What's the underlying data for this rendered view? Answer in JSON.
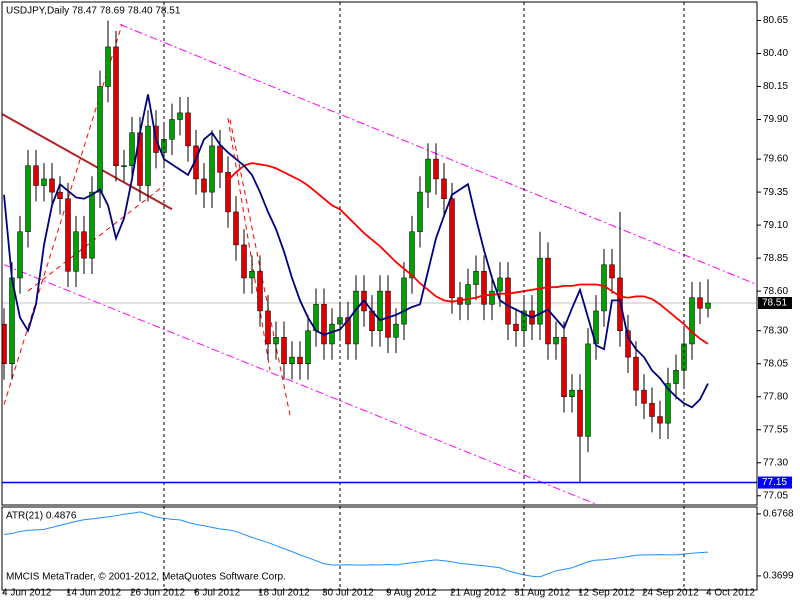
{
  "chart_data": [
    {
      "type": "candlestick",
      "title": "USDJPY,Daily  78.47 78.69 78.40 78.51",
      "categories": [
        "4 Jun 2012",
        null,
        null,
        null,
        null,
        null,
        null,
        null,
        "14 Jun 2012",
        null,
        null,
        null,
        null,
        null,
        null,
        null,
        "26 Jun 2012",
        null,
        null,
        null,
        null,
        null,
        null,
        null,
        "6 Jul 2012",
        null,
        null,
        null,
        null,
        null,
        null,
        null,
        "18 Jul 2012",
        null,
        null,
        null,
        null,
        null,
        null,
        null,
        "30 Jul 2012",
        null,
        null,
        null,
        null,
        null,
        null,
        null,
        "9 Aug 2012",
        null,
        null,
        null,
        null,
        null,
        null,
        null,
        "21 Aug 2012",
        null,
        null,
        null,
        null,
        null,
        null,
        null,
        "31 Aug 2012",
        null,
        null,
        null,
        null,
        null,
        null,
        null,
        "12 Sep 2012",
        null,
        null,
        null,
        null,
        null,
        null,
        null,
        "24 Sep 2012",
        null,
        null,
        null,
        null,
        null,
        null,
        null,
        "4 Oct 2012"
      ],
      "open": [
        78.35,
        78.05,
        78.7,
        79.05,
        79.55,
        79.4,
        79.45,
        79.35,
        79.3,
        78.75,
        79.05,
        78.85,
        79.35,
        80.15,
        80.45,
        79.55,
        79.55,
        79.8,
        79.4,
        79.85,
        79.65,
        79.75,
        79.9,
        79.95,
        79.7,
        79.45,
        79.35,
        79.7,
        79.5,
        79.2,
        78.95,
        78.7,
        78.75,
        78.45,
        78.2,
        78.25,
        78.05,
        78.1,
        78.05,
        78.3,
        78.5,
        78.2,
        78.35,
        78.4,
        78.2,
        78.6,
        78.45,
        78.3,
        78.6,
        78.25,
        78.35,
        78.7,
        79.05,
        79.35,
        79.6,
        79.45,
        79.3,
        78.55,
        78.5,
        78.65,
        78.75,
        78.5,
        78.6,
        78.7,
        78.35,
        78.3,
        78.45,
        78.35,
        78.85,
        78.2,
        78.25,
        77.8,
        77.85,
        77.5,
        78.2,
        78.45,
        78.8,
        78.7,
        78.3,
        78.1,
        77.85,
        77.75,
        77.65,
        77.6,
        77.9,
        78.0,
        78.2,
        78.55,
        78.47
      ],
      "high": [
        78.47,
        78.82,
        79.17,
        79.67,
        79.67,
        79.57,
        79.57,
        79.47,
        79.42,
        79.17,
        79.17,
        79.47,
        80.27,
        80.65,
        80.57,
        79.67,
        79.92,
        79.92,
        79.97,
        79.97,
        79.87,
        80.02,
        80.07,
        80.07,
        79.82,
        79.57,
        79.82,
        79.82,
        79.62,
        79.32,
        79.07,
        78.87,
        78.87,
        78.57,
        78.37,
        78.37,
        78.22,
        78.22,
        78.42,
        78.62,
        78.62,
        78.47,
        78.52,
        78.52,
        78.72,
        78.72,
        78.57,
        78.72,
        78.72,
        78.47,
        78.82,
        79.17,
        79.47,
        79.72,
        79.72,
        79.57,
        79.42,
        78.67,
        78.77,
        78.87,
        78.87,
        78.72,
        78.82,
        78.82,
        78.47,
        78.57,
        78.57,
        79.05,
        78.97,
        78.37,
        78.37,
        77.97,
        77.97,
        78.32,
        78.57,
        78.92,
        78.92,
        79.2,
        78.42,
        78.22,
        77.97,
        77.87,
        77.77,
        78.02,
        78.12,
        78.32,
        78.67,
        78.67,
        78.69
      ],
      "low": [
        77.93,
        77.93,
        78.58,
        78.93,
        79.28,
        79.28,
        79.23,
        79.18,
        78.63,
        78.63,
        78.73,
        78.73,
        79.23,
        80.03,
        79.43,
        79.43,
        79.43,
        79.28,
        79.28,
        79.53,
        79.53,
        79.63,
        79.78,
        79.58,
        79.33,
        79.23,
        79.23,
        79.38,
        79.08,
        78.83,
        78.58,
        78.58,
        78.33,
        78.08,
        78.08,
        77.93,
        77.93,
        77.93,
        77.93,
        78.18,
        78.08,
        78.08,
        78.23,
        78.08,
        78.08,
        78.33,
        78.18,
        78.18,
        78.13,
        78.13,
        78.23,
        78.58,
        78.93,
        79.23,
        79.33,
        79.18,
        78.43,
        78.38,
        78.38,
        78.53,
        78.38,
        78.38,
        78.48,
        78.23,
        78.18,
        78.18,
        78.23,
        78.23,
        78.08,
        78.08,
        77.68,
        77.68,
        77.15,
        77.38,
        78.08,
        78.33,
        78.58,
        78.18,
        77.98,
        77.73,
        77.63,
        77.53,
        77.48,
        77.48,
        77.78,
        77.88,
        78.08,
        78.35,
        78.4
      ],
      "close": [
        78.05,
        78.7,
        79.05,
        79.55,
        79.4,
        79.45,
        79.35,
        79.3,
        78.75,
        79.05,
        78.85,
        79.35,
        80.15,
        80.45,
        79.55,
        79.55,
        79.8,
        79.4,
        79.85,
        79.65,
        79.75,
        79.9,
        79.95,
        79.7,
        79.45,
        79.35,
        79.7,
        79.5,
        79.2,
        78.95,
        78.7,
        78.75,
        78.45,
        78.2,
        78.25,
        78.05,
        78.1,
        78.05,
        78.3,
        78.5,
        78.2,
        78.35,
        78.4,
        78.2,
        78.6,
        78.45,
        78.3,
        78.6,
        78.25,
        78.35,
        78.7,
        79.05,
        79.35,
        79.6,
        79.45,
        79.3,
        78.55,
        78.5,
        78.65,
        78.75,
        78.5,
        78.6,
        78.7,
        78.35,
        78.3,
        78.45,
        78.35,
        78.85,
        78.2,
        78.25,
        77.8,
        77.85,
        77.5,
        78.2,
        78.45,
        78.8,
        78.7,
        78.3,
        78.1,
        77.85,
        77.75,
        77.65,
        77.6,
        77.9,
        78.0,
        78.2,
        78.55,
        78.47,
        78.51
      ],
      "up_color": "#00a000",
      "down_color": "#e00000",
      "wick_color": "#000000",
      "overlays": [
        {
          "color": "#ff0000",
          "values": [
            null,
            null,
            null,
            null,
            null,
            null,
            null,
            null,
            null,
            null,
            null,
            null,
            null,
            null,
            null,
            null,
            null,
            null,
            null,
            null,
            null,
            null,
            null,
            null,
            null,
            null,
            null,
            null,
            79.44,
            79.5,
            79.55,
            79.57,
            79.56,
            79.55,
            79.53,
            79.5,
            79.47,
            79.44,
            79.4,
            79.35,
            79.3,
            79.25,
            79.22,
            79.16,
            79.1,
            79.04,
            78.99,
            78.94,
            78.88,
            78.82,
            78.77,
            78.72,
            78.66,
            78.61,
            78.56,
            78.53,
            78.52,
            78.53,
            78.54,
            78.55,
            78.57,
            78.57,
            78.58,
            78.58,
            78.59,
            78.6,
            78.61,
            78.62,
            78.63,
            78.63,
            78.64,
            78.64,
            78.65,
            78.65,
            78.65,
            78.64,
            78.6,
            78.56,
            78.55,
            78.56,
            78.56,
            78.54,
            78.5,
            78.45,
            78.4,
            78.35,
            78.29,
            78.24,
            78.2
          ]
        },
        {
          "color": "#000080",
          "values": [
            79.33,
            78.69,
            78.4,
            78.3,
            78.5,
            78.95,
            79.25,
            79.41,
            79.36,
            79.31,
            79.3,
            79.33,
            79.37,
            79.25,
            79.0,
            79.15,
            79.45,
            79.8,
            80.09,
            79.75,
            79.6,
            79.56,
            79.52,
            79.48,
            79.6,
            79.75,
            79.8,
            79.71,
            79.65,
            79.6,
            79.55,
            79.48,
            79.35,
            79.2,
            79.07,
            78.9,
            78.7,
            78.53,
            78.4,
            78.3,
            78.27,
            78.29,
            78.31,
            78.38,
            78.46,
            78.53,
            78.45,
            78.38,
            78.4,
            78.42,
            78.45,
            78.48,
            78.5,
            78.75,
            79.0,
            79.17,
            79.33,
            79.37,
            79.41,
            79.15,
            78.91,
            78.7,
            78.53,
            78.49,
            78.46,
            78.43,
            78.4,
            78.43,
            78.46,
            78.39,
            78.32,
            78.47,
            78.61,
            78.4,
            78.19,
            78.16,
            78.53,
            78.53,
            78.25,
            78.16,
            78.1,
            78.0,
            77.94,
            77.86,
            77.8,
            77.75,
            77.72,
            77.78,
            77.9
          ]
        }
      ],
      "trendlines": [
        {
          "from": [
            14.5,
            80.62
          ],
          "to": [
            94.1,
            78.65
          ],
          "color": "#ff00ff",
          "style": "dashdot"
        },
        {
          "from": [
            0,
            78.8
          ],
          "to": [
            74.25,
            76.98
          ],
          "color": "#ff00ff",
          "style": "dashdot"
        },
        {
          "from": [
            0,
            77.74
          ],
          "to": [
            14.75,
            80.62
          ],
          "color": "#ff0000",
          "style": "dash"
        },
        {
          "from": [
            28.25,
            79.9
          ],
          "to": [
            35.75,
            77.66
          ],
          "color": "#ff0000",
          "style": "dash"
        },
        {
          "from": [
            28,
            79.91
          ],
          "to": [
            33.25,
            78.0
          ],
          "color": "#ff0000",
          "style": "dash"
        },
        {
          "from": [
            3,
            78.6
          ],
          "to": [
            20,
            79.4
          ],
          "color": "#ff0000",
          "style": "dash"
        },
        {
          "from": [
            -0.5,
            79.95
          ],
          "to": [
            21,
            79.22
          ],
          "color": "#b22222",
          "style": "solid"
        }
      ],
      "hline": {
        "value": 77.15,
        "color": "#0000ff"
      },
      "last_price": 78.51,
      "period_separators": [
        20,
        42,
        65,
        85
      ],
      "ylim": [
        76.98,
        80.79
      ],
      "yticks": [
        80.65,
        {
          "value": 80.4,
          "label": "80.40"
        },
        80.15,
        {
          "value": 79.9,
          "label": "79.90"
        },
        {
          "value": 79.6,
          "label": "79.60"
        },
        79.35,
        {
          "value": 79.1,
          "label": "79.10"
        },
        78.85,
        {
          "value": 78.6,
          "label": "78.60"
        },
        {
          "value": 78.3,
          "label": "78.30"
        },
        78.05,
        {
          "value": 77.8,
          "label": "77.80"
        },
        77.55,
        {
          "value": 77.3,
          "label": "77.30"
        },
        77.05
      ]
    },
    {
      "type": "line",
      "title": "ATR(21) 0.4876",
      "footer": "MMCIS MetaTrader, © 2001-2012, MetaQuotes Software Corp.",
      "color": "#1e90ff",
      "values": [
        0.575,
        0.58,
        0.59,
        0.595,
        0.598,
        0.6,
        0.61,
        0.62,
        0.63,
        0.64,
        0.648,
        0.652,
        0.657,
        0.662,
        0.668,
        0.675,
        0.68,
        0.687,
        0.675,
        0.662,
        0.655,
        0.65,
        0.647,
        0.635,
        0.625,
        0.618,
        0.61,
        0.602,
        0.598,
        0.59,
        0.575,
        0.56,
        0.548,
        0.535,
        0.52,
        0.505,
        0.49,
        0.474,
        0.46,
        0.445,
        0.43,
        0.424,
        0.424,
        0.425,
        0.424,
        0.423,
        0.425,
        0.424,
        0.426,
        0.424,
        0.43,
        0.435,
        0.44,
        0.445,
        0.449,
        0.445,
        0.44,
        0.432,
        0.428,
        0.424,
        0.42,
        0.415,
        0.41,
        0.395,
        0.385,
        0.375,
        0.368,
        0.365,
        0.38,
        0.395,
        0.402,
        0.41,
        0.425,
        0.44,
        0.448,
        0.45,
        0.455,
        0.46,
        0.465,
        0.472,
        0.474,
        0.474,
        0.475,
        0.474,
        0.474,
        0.478,
        0.482,
        0.485,
        0.4876
      ],
      "ylim": [
        0.3,
        0.711
      ],
      "yticks": [
        0.6768,
        0.3699
      ]
    }
  ]
}
